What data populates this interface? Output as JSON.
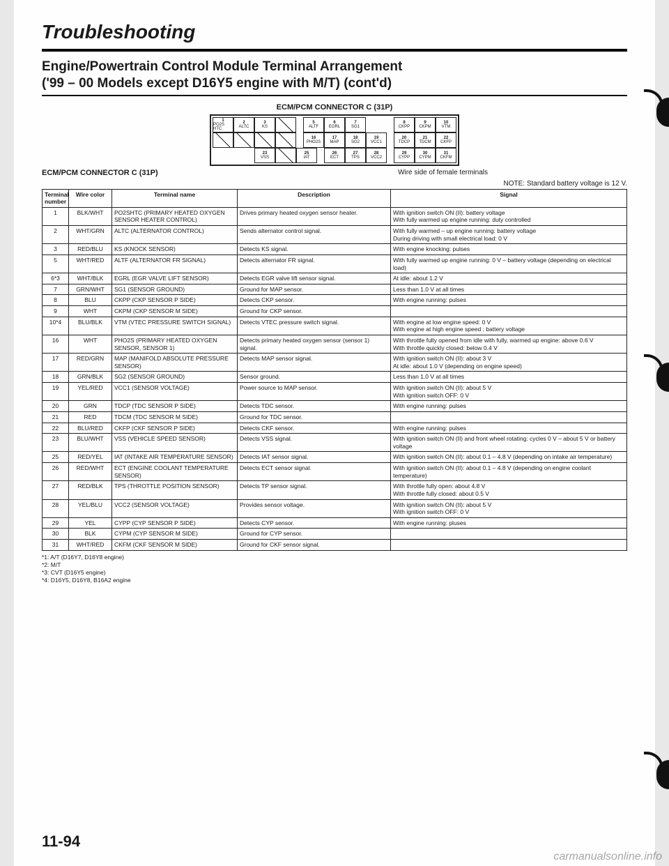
{
  "page_title": "Troubleshooting",
  "section_title_1": "Engine/Powertrain Control Module Terminal Arrangement",
  "section_title_2": "('99 – 00 Models except D16Y5 engine with M/T) (cont'd)",
  "diagram_caption": "ECM/PCM CONNECTOR C (31P)",
  "connector_label": "ECM/PCM CONNECTOR C (31P)",
  "wire_side_label": "Wire side of female terminals",
  "note_text": "NOTE: Standard battery voltage is 12 V.",
  "table": {
    "headers": [
      "Terminal number",
      "Wire color",
      "Terminal name",
      "Description",
      "Signal"
    ],
    "rows": [
      {
        "num": "1",
        "wire": "BLK/WHT",
        "name": "PO2SHTC (PRIMARY HEATED OXYGEN SENSOR HEATER CONTROL)",
        "desc": "Drives primary heated oxygen sensor heater.",
        "sig": "With ignition switch ON (II): battery voltage\nWith fully warmed up engine running: duty controlled"
      },
      {
        "num": "2",
        "wire": "WHT/GRN",
        "name": "ALTC (ALTERNATOR CONTROL)",
        "desc": "Sends alternator control signal.",
        "sig": "With fully warmed – up engine running: battery voltage\nDuring driving with small electrical load: 0 V"
      },
      {
        "num": "3",
        "wire": "RED/BLU",
        "name": "KS (KNOCK SENSOR)",
        "desc": "Detects KS signal.",
        "sig": "With engine knocking: pulses"
      },
      {
        "num": "5",
        "wire": "WHT/RED",
        "name": "ALTF (ALTERNATOR FR SIGNAL)",
        "desc": "Detects alternator FR signal.",
        "sig": "With fully warmed up engine running: 0 V – battery voltage (depending on electrical load)"
      },
      {
        "num": "6*3",
        "wire": "WHT/BLK",
        "name": "EGRL (EGR VALVE LIFT SENSOR)",
        "desc": "Detects EGR valve lift sensor signal.",
        "sig": "At idle: about 1.2 V"
      },
      {
        "num": "7",
        "wire": "GRN/WHT",
        "name": "SG1 (SENSOR GROUND)",
        "desc": "Ground for MAP sensor.",
        "sig": "Less than 1.0 V at all times"
      },
      {
        "num": "8",
        "wire": "BLU",
        "name": "CKPP (CKP SENSOR P SIDE)",
        "desc": "Detects CKP sensor.",
        "sig": "With engine running: pulses"
      },
      {
        "num": "9",
        "wire": "WHT",
        "name": "CKPM (CKP SENSOR M SIDE)",
        "desc": "Ground for CKP sensor.",
        "sig": ""
      },
      {
        "num": "10*4",
        "wire": "BLU/BLK",
        "name": "VTM (VTEC PRESSURE SWITCH SIGNAL)",
        "desc": "Detects VTEC pressure switch signal.",
        "sig": "With engine at low engine speed: 0 V\nWith engine at high engine speed : battery voltage"
      },
      {
        "num": "16",
        "wire": "WHT",
        "name": "PHO2S (PRIMARY HEATED OXYGEN SENSOR, SENSOR 1)",
        "desc": "Detects primary heated oxygen sensor (sensor 1) signal.",
        "sig": "With throttle fully opened from idle with fully, warmed up engine: above 0.6 V\nWith throttle quickly closed: below 0.4 V"
      },
      {
        "num": "17",
        "wire": "RED/GRN",
        "name": "MAP (MANIFOLD ABSOLUTE PRESSURE SENSOR)",
        "desc": "Detects MAP sensor signal.",
        "sig": "With ignition switch ON (II): about 3 V\nAt idle: about 1.0 V (depending on engine speed)"
      },
      {
        "num": "18",
        "wire": "GRN/BLK",
        "name": "SG2 (SENSOR GROUND)",
        "desc": "Sensor ground.",
        "sig": "Less than 1.0 V at all times"
      },
      {
        "num": "19",
        "wire": "YEL/RED",
        "name": "VCC1 (SENSOR VOLTAGE)",
        "desc": "Power source to MAP sensor.",
        "sig": "With ignition switch ON (II): about 5 V\nWith ignition switch OFF: 0 V"
      },
      {
        "num": "20",
        "wire": "GRN",
        "name": "TDCP (TDC SENSOR P SIDE)",
        "desc": "Detects TDC sensor.",
        "sig": "With engine running: pulses"
      },
      {
        "num": "21",
        "wire": "RED",
        "name": "TDCM (TDC SENSOR M SIDE)",
        "desc": "Ground for TDC sensor.",
        "sig": ""
      },
      {
        "num": "22",
        "wire": "BLU/RED",
        "name": "CKFP (CKF SENSOR P SIDE)",
        "desc": "Detects CKF sensor.",
        "sig": "With engine running: pulses"
      },
      {
        "num": "23",
        "wire": "BLU/WHT",
        "name": "VSS (VEHICLE SPEED SENSOR)",
        "desc": "Detects VSS signal.",
        "sig": "With ignition switch ON (II) and front wheel rotating: cycles 0 V – about 5 V or battery voltage"
      },
      {
        "num": "25",
        "wire": "RED/YEL",
        "name": "IAT (INTAKE AIR TEMPERATURE SENSOR)",
        "desc": "Detects IAT sensor signal.",
        "sig": "With ignition switch ON (II): about 0.1 – 4.8 V (depending on intake air temperature)"
      },
      {
        "num": "26",
        "wire": "RED/WHT",
        "name": "ECT (ENGINE COOLANT TEMPERATURE SENSOR)",
        "desc": "Detects ECT sensor signal.",
        "sig": "With ignition switch ON (II): about 0.1 – 4.8 V (depending on engine coolant temperature)"
      },
      {
        "num": "27",
        "wire": "RED/BLK",
        "name": "TPS (THROTTLE POSITION SENSOR)",
        "desc": "Detects TP sensor signal.",
        "sig": "With throttle fully open: about 4.8 V\nWith throttle fully closed: about 0.5 V"
      },
      {
        "num": "28",
        "wire": "YEL/BLU",
        "name": "VCC2 (SENSOR VOLTAGE)",
        "desc": "Provides sensor voltage.",
        "sig": "With ignition switch ON (II): about 5 V\nWith ignition switch OFF: 0 V"
      },
      {
        "num": "29",
        "wire": "YEL",
        "name": "CYPP (CYP SENSOR P SIDE)",
        "desc": "Detects CYP sensor.",
        "sig": "With engine running: pluses"
      },
      {
        "num": "30",
        "wire": "BLK",
        "name": "CYPM (CYP SENSOR M SIDE)",
        "desc": "Ground for CYP sensor.",
        "sig": ""
      },
      {
        "num": "31",
        "wire": "WHT/RED",
        "name": "CKFM (CKF SENSOR M SIDE)",
        "desc": "Ground for CKF sensor signal.",
        "sig": ""
      }
    ]
  },
  "footnotes": [
    "*1: A/T (D16Y7, D16Y8 engine)",
    "*2: M/T",
    "*3: CVT (D16Y5 engine)",
    "*4: D16Y5, D16Y8, B16A2 engine"
  ],
  "page_number": "11-94",
  "watermark": "carmanualsonline.info",
  "connector_pins": {
    "block1": [
      [
        {
          "n": "1",
          "l": "PO2S HTC"
        },
        {
          "n": "2",
          "l": "ALTC"
        },
        {
          "n": "3",
          "l": "KS"
        }
      ],
      [
        {
          "diag": true
        },
        {
          "diag": true
        },
        {
          "diag": true
        }
      ]
    ],
    "block2_top": [
      {
        "n": "5",
        "l": "ALTF"
      },
      {
        "n": "6",
        "l": "EGRL"
      },
      {
        "n": "7",
        "l": "SG1"
      }
    ],
    "block2_bot": [
      {
        "n": "16",
        "l": "PHO2S"
      },
      {
        "n": "17",
        "l": "MAP"
      },
      {
        "n": "18",
        "l": "SG2"
      },
      {
        "n": "19",
        "l": "VCC1"
      }
    ],
    "block3_top": [
      {
        "n": "8",
        "l": "CKPP"
      },
      {
        "n": "9",
        "l": "CKPM"
      },
      {
        "n": "10",
        "l": "VTM"
      }
    ],
    "block3_bot": [
      {
        "n": "20",
        "l": "TDCP"
      },
      {
        "n": "21",
        "l": "TDCM"
      },
      {
        "n": "22",
        "l": "CKFP"
      }
    ],
    "row3_left": [
      {
        "n": "23",
        "l": "VSS"
      }
    ],
    "row3_mid": [
      {
        "n": "25",
        "l": "IAT"
      }
    ],
    "row3_r": [
      {
        "n": "26",
        "l": "ECT"
      },
      {
        "n": "27",
        "l": "TPS"
      },
      {
        "n": "28",
        "l": "VCC2"
      }
    ],
    "row3_far": [
      {
        "n": "29",
        "l": "CYPP"
      },
      {
        "n": "30",
        "l": "CYPM"
      },
      {
        "n": "31",
        "l": "CKFM"
      }
    ]
  }
}
